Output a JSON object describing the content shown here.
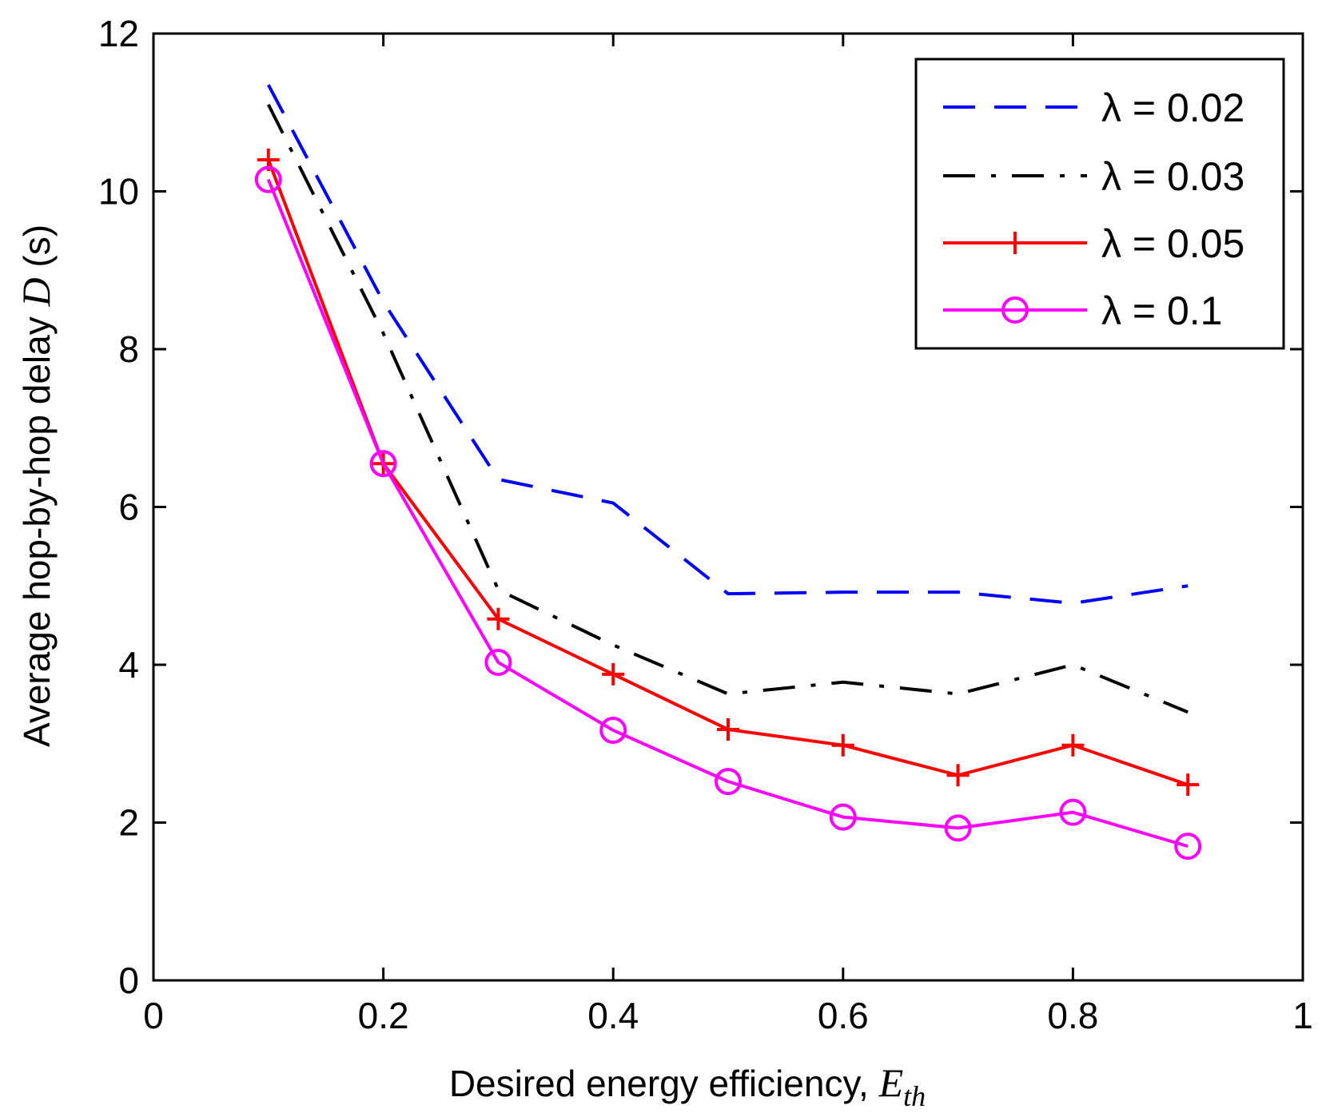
{
  "chart_data": {
    "type": "line",
    "title": "",
    "xlabel": "Desired energy efficiency, ",
    "xlabel_var": "E",
    "xlabel_sub": "th",
    "ylabel": "Average hop-by-hop delay ",
    "ylabel_var": "D",
    "ylabel_unit": " (s)",
    "xlim": [
      0,
      1
    ],
    "ylim": [
      0,
      12
    ],
    "xticks": [
      "0",
      "0.2",
      "0.4",
      "0.6",
      "0.8",
      "1"
    ],
    "xtick_values": [
      0,
      0.2,
      0.4,
      0.6,
      0.8,
      1
    ],
    "yticks": [
      "0",
      "2",
      "4",
      "6",
      "8",
      "10",
      "12"
    ],
    "ytick_values": [
      0,
      2,
      4,
      6,
      8,
      10,
      12
    ],
    "grid": false,
    "legend_position": "top-right",
    "x": [
      0.1,
      0.2,
      0.3,
      0.4,
      0.5,
      0.6,
      0.7,
      0.8,
      0.9
    ],
    "series": [
      {
        "name": "λ = 0.02",
        "color": "#0000ff",
        "style": "dashed",
        "marker": "none",
        "values": [
          11.35,
          8.6,
          6.35,
          6.05,
          4.9,
          4.92,
          4.92,
          4.78,
          5.0
        ]
      },
      {
        "name": "λ = 0.03",
        "color": "#000000",
        "style": "dashdot",
        "marker": "none",
        "values": [
          11.1,
          8.2,
          4.95,
          4.25,
          3.63,
          3.78,
          3.63,
          4.0,
          3.4
        ]
      },
      {
        "name": "λ = 0.05",
        "color": "#ff0000",
        "style": "solid",
        "marker": "plus",
        "values": [
          10.4,
          6.55,
          4.58,
          3.88,
          3.18,
          2.98,
          2.6,
          2.98,
          2.48
        ]
      },
      {
        "name": "λ = 0.1",
        "color": "#ff00ff",
        "style": "solid",
        "marker": "circle",
        "values": [
          10.15,
          6.55,
          4.03,
          3.17,
          2.52,
          2.07,
          1.93,
          2.13,
          1.7
        ]
      }
    ]
  }
}
